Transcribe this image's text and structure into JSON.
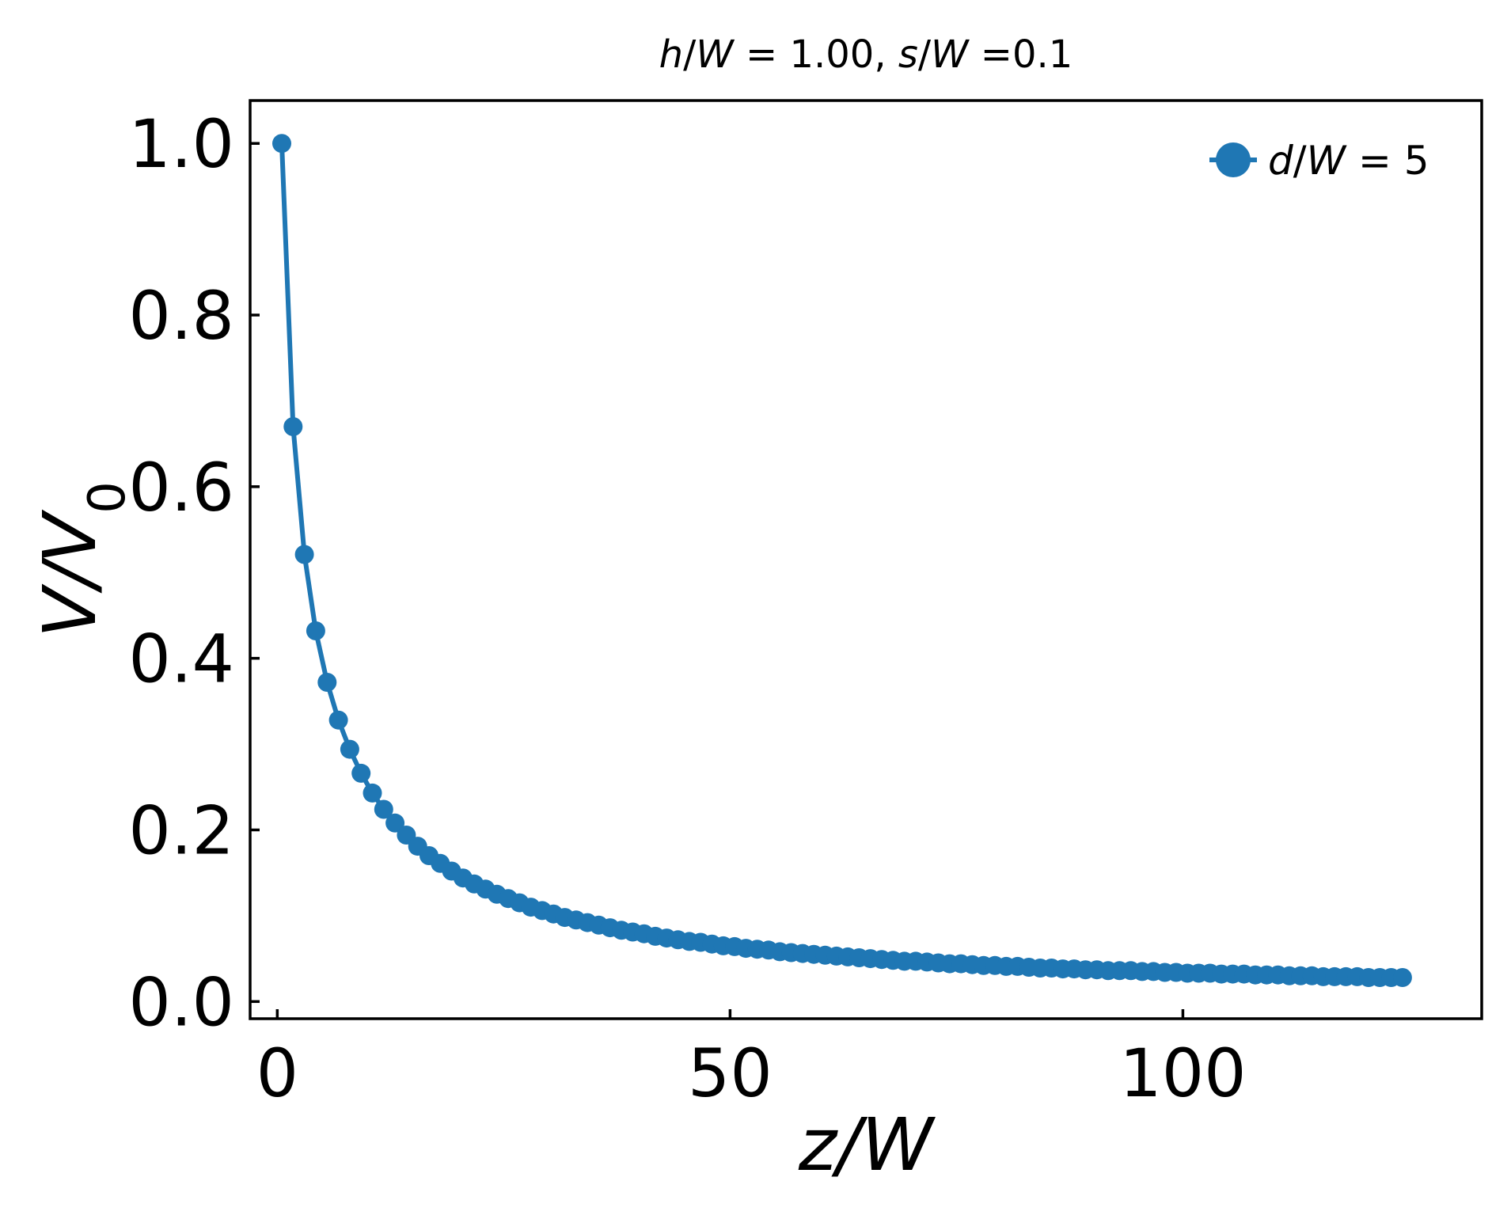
{
  "chart_data": {
    "type": "line",
    "title": {
      "parts": [
        {
          "text": "h",
          "italic": true
        },
        {
          "text": "/",
          "italic": false
        },
        {
          "text": "W",
          "italic": true
        },
        {
          "text": " = 1.00, ",
          "italic": false
        },
        {
          "text": "s",
          "italic": true
        },
        {
          "text": "/",
          "italic": false
        },
        {
          "text": "W",
          "italic": true
        },
        {
          "text": " =0.1",
          "italic": false
        }
      ]
    },
    "xlabel": "z/W",
    "ylabel": {
      "main": "V/V",
      "sub": "0"
    },
    "xlim": [
      -3,
      133
    ],
    "ylim": [
      -0.02,
      1.05
    ],
    "xticks": [
      {
        "value": 0,
        "label": "0"
      },
      {
        "value": 50,
        "label": "50"
      },
      {
        "value": 100,
        "label": "100"
      }
    ],
    "yticks": [
      {
        "value": 0.0,
        "label": "0.0"
      },
      {
        "value": 0.2,
        "label": "0.2"
      },
      {
        "value": 0.4,
        "label": "0.4"
      },
      {
        "value": 0.6,
        "label": "0.6"
      },
      {
        "value": 0.8,
        "label": "0.8"
      },
      {
        "value": 1.0,
        "label": "1.0"
      }
    ],
    "grid": false,
    "legend_position": "top-right",
    "color": "#1f77b4",
    "series": [
      {
        "name_parts": [
          {
            "text": "d",
            "italic": true
          },
          {
            "text": "/",
            "italic": false
          },
          {
            "text": "W",
            "italic": true
          },
          {
            "text": " = 5",
            "italic": false
          }
        ],
        "x": [
          0.5,
          1.75,
          3.0,
          4.25,
          5.5,
          6.75,
          8.0,
          9.25,
          10.5,
          11.75,
          13.0,
          14.25,
          15.5,
          16.75,
          18.0,
          19.25,
          20.5,
          21.75,
          23.0,
          24.25,
          25.5,
          26.75,
          28.0,
          29.25,
          30.5,
          31.75,
          33.0,
          34.25,
          35.5,
          36.75,
          38.0,
          39.25,
          40.5,
          41.75,
          43.0,
          44.25,
          45.5,
          46.75,
          48.0,
          49.25,
          50.5,
          51.75,
          53.0,
          54.25,
          55.5,
          56.75,
          58.0,
          59.25,
          60.5,
          61.75,
          63.0,
          64.25,
          65.5,
          66.75,
          68.0,
          69.25,
          70.5,
          71.75,
          73.0,
          74.25,
          75.5,
          76.75,
          78.0,
          79.25,
          80.5,
          81.75,
          83.0,
          84.25,
          85.5,
          86.75,
          88.0,
          89.25,
          90.5,
          91.75,
          93.0,
          94.25,
          95.5,
          96.75,
          98.0,
          99.25,
          100.5,
          101.75,
          103.0,
          104.25,
          105.5,
          106.75,
          108.0,
          109.25,
          110.5,
          111.75,
          113.0,
          114.25,
          115.5,
          116.75,
          118.0,
          119.25,
          120.5,
          121.75,
          123.0,
          124.25
        ],
        "y": [
          1.0,
          0.67,
          0.521,
          0.432,
          0.372,
          0.328,
          0.294,
          0.266,
          0.243,
          0.224,
          0.208,
          0.194,
          0.181,
          0.17,
          0.161,
          0.152,
          0.144,
          0.137,
          0.131,
          0.125,
          0.12,
          0.115,
          0.11,
          0.106,
          0.102,
          0.098,
          0.095,
          0.092,
          0.089,
          0.086,
          0.083,
          0.081,
          0.079,
          0.076,
          0.074,
          0.072,
          0.07,
          0.069,
          0.067,
          0.065,
          0.064,
          0.062,
          0.061,
          0.06,
          0.058,
          0.057,
          0.056,
          0.055,
          0.054,
          0.053,
          0.052,
          0.051,
          0.05,
          0.049,
          0.048,
          0.047,
          0.047,
          0.046,
          0.045,
          0.044,
          0.044,
          0.043,
          0.042,
          0.042,
          0.041,
          0.041,
          0.04,
          0.039,
          0.039,
          0.038,
          0.038,
          0.037,
          0.037,
          0.036,
          0.036,
          0.036,
          0.035,
          0.035,
          0.034,
          0.034,
          0.033,
          0.033,
          0.033,
          0.032,
          0.032,
          0.032,
          0.031,
          0.031,
          0.031,
          0.03,
          0.03,
          0.03,
          0.029,
          0.029,
          0.029,
          0.029,
          0.028,
          0.028,
          0.028,
          0.028
        ]
      }
    ]
  }
}
